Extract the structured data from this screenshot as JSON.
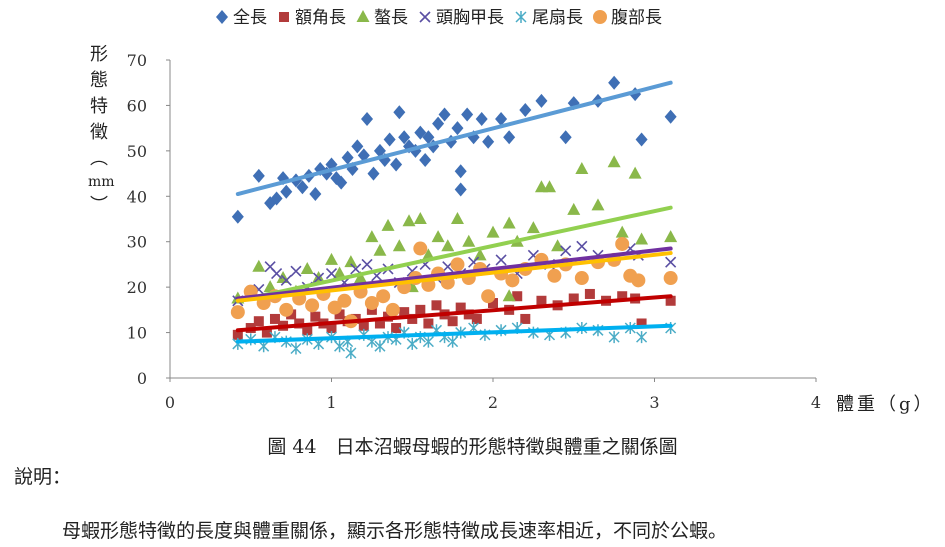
{
  "chart_data": {
    "type": "scatter",
    "ylabel_chars": [
      "形",
      "態",
      "特",
      "徵",
      "︵",
      "mm",
      "︶"
    ],
    "xlabel": "體重（g）",
    "xlim": [
      0,
      4
    ],
    "ylim": [
      0,
      70
    ],
    "x_ticks": [
      "0",
      "1",
      "2",
      "3",
      "4"
    ],
    "y_ticks": [
      "0",
      "10",
      "20",
      "30",
      "40",
      "50",
      "60",
      "70"
    ],
    "grid": false,
    "legend_position": "top",
    "series": [
      {
        "name": "全長",
        "color": "#3f6fb5",
        "marker": "diamond",
        "trend_color": "#5b9bd5",
        "trend": [
          [
            0.42,
            40.5
          ],
          [
            3.1,
            65
          ]
        ],
        "points": [
          [
            0.42,
            35.5
          ],
          [
            0.55,
            44.5
          ],
          [
            0.62,
            38.5
          ],
          [
            0.66,
            39.5
          ],
          [
            0.7,
            44
          ],
          [
            0.72,
            41
          ],
          [
            0.78,
            43.5
          ],
          [
            0.82,
            42
          ],
          [
            0.86,
            44.5
          ],
          [
            0.9,
            40.5
          ],
          [
            0.93,
            46
          ],
          [
            0.97,
            45
          ],
          [
            1.0,
            47
          ],
          [
            1.03,
            44
          ],
          [
            1.06,
            43
          ],
          [
            1.1,
            48.5
          ],
          [
            1.13,
            46
          ],
          [
            1.16,
            51
          ],
          [
            1.2,
            49
          ],
          [
            1.22,
            57
          ],
          [
            1.26,
            45
          ],
          [
            1.3,
            50
          ],
          [
            1.33,
            48
          ],
          [
            1.36,
            52.5
          ],
          [
            1.4,
            47
          ],
          [
            1.42,
            58.5
          ],
          [
            1.45,
            53
          ],
          [
            1.48,
            51
          ],
          [
            1.52,
            50
          ],
          [
            1.55,
            54
          ],
          [
            1.58,
            48
          ],
          [
            1.6,
            53
          ],
          [
            1.63,
            51
          ],
          [
            1.66,
            56
          ],
          [
            1.7,
            58
          ],
          [
            1.74,
            52
          ],
          [
            1.78,
            55
          ],
          [
            1.8,
            45.5
          ],
          [
            1.8,
            41.5
          ],
          [
            1.84,
            58
          ],
          [
            1.88,
            53
          ],
          [
            1.93,
            57
          ],
          [
            1.97,
            52
          ],
          [
            2.05,
            57
          ],
          [
            2.1,
            53
          ],
          [
            2.2,
            59
          ],
          [
            2.3,
            61
          ],
          [
            2.45,
            53
          ],
          [
            2.5,
            60.5
          ],
          [
            2.65,
            61
          ],
          [
            2.75,
            65
          ],
          [
            2.88,
            62.5
          ],
          [
            2.92,
            52.5
          ],
          [
            3.1,
            57.5
          ]
        ]
      },
      {
        "name": "額角長",
        "color": "#b23b3b",
        "marker": "square",
        "trend_color": "#c00000",
        "trend": [
          [
            0.42,
            10.5
          ],
          [
            3.1,
            18
          ]
        ],
        "points": [
          [
            0.42,
            9.5
          ],
          [
            0.5,
            11
          ],
          [
            0.55,
            12.5
          ],
          [
            0.6,
            10
          ],
          [
            0.65,
            13
          ],
          [
            0.7,
            11.5
          ],
          [
            0.75,
            14
          ],
          [
            0.8,
            12
          ],
          [
            0.85,
            10.5
          ],
          [
            0.9,
            13.5
          ],
          [
            0.95,
            12
          ],
          [
            1.0,
            11
          ],
          [
            1.05,
            14
          ],
          [
            1.1,
            12.5
          ],
          [
            1.15,
            13
          ],
          [
            1.2,
            11.5
          ],
          [
            1.25,
            15
          ],
          [
            1.3,
            12
          ],
          [
            1.35,
            13.5
          ],
          [
            1.4,
            11
          ],
          [
            1.45,
            14.5
          ],
          [
            1.5,
            13
          ],
          [
            1.55,
            15
          ],
          [
            1.6,
            12
          ],
          [
            1.65,
            16
          ],
          [
            1.7,
            14
          ],
          [
            1.75,
            12.5
          ],
          [
            1.8,
            15.5
          ],
          [
            1.85,
            14
          ],
          [
            1.9,
            13
          ],
          [
            2.0,
            16.5
          ],
          [
            2.1,
            15
          ],
          [
            2.15,
            18
          ],
          [
            2.2,
            13
          ],
          [
            2.3,
            17
          ],
          [
            2.4,
            16
          ],
          [
            2.5,
            17.5
          ],
          [
            2.6,
            18.5
          ],
          [
            2.7,
            17
          ],
          [
            2.8,
            18
          ],
          [
            2.88,
            17.5
          ],
          [
            2.92,
            12
          ],
          [
            3.1,
            17
          ]
        ]
      },
      {
        "name": "螯長",
        "color": "#8ab84a",
        "marker": "triangle",
        "trend_color": "#92d050",
        "trend": [
          [
            0.42,
            17
          ],
          [
            3.1,
            37.5
          ]
        ],
        "points": [
          [
            0.42,
            17.5
          ],
          [
            0.55,
            24.5
          ],
          [
            0.62,
            20
          ],
          [
            0.7,
            22
          ],
          [
            0.78,
            19
          ],
          [
            0.85,
            24
          ],
          [
            0.92,
            22
          ],
          [
            1.0,
            26
          ],
          [
            1.05,
            23
          ],
          [
            1.12,
            25.5
          ],
          [
            1.18,
            22
          ],
          [
            1.25,
            31
          ],
          [
            1.3,
            28
          ],
          [
            1.35,
            33.5
          ],
          [
            1.42,
            29
          ],
          [
            1.48,
            34.5
          ],
          [
            1.55,
            35
          ],
          [
            1.6,
            27
          ],
          [
            1.66,
            31
          ],
          [
            1.72,
            29
          ],
          [
            1.78,
            35
          ],
          [
            1.85,
            30
          ],
          [
            1.92,
            27
          ],
          [
            2.0,
            32
          ],
          [
            2.1,
            34
          ],
          [
            2.15,
            30
          ],
          [
            2.25,
            33
          ],
          [
            2.3,
            42
          ],
          [
            2.35,
            42
          ],
          [
            2.4,
            29
          ],
          [
            2.5,
            37
          ],
          [
            2.55,
            46
          ],
          [
            2.65,
            38
          ],
          [
            2.75,
            47.5
          ],
          [
            2.8,
            32
          ],
          [
            2.88,
            45
          ],
          [
            2.92,
            30.5
          ],
          [
            3.1,
            31
          ],
          [
            2.1,
            18
          ],
          [
            1.5,
            20
          ]
        ]
      },
      {
        "name": "頭胸甲長",
        "color": "#5a4fa3",
        "marker": "x",
        "trend_color": "#7030a0",
        "trend": [
          [
            0.42,
            17.5
          ],
          [
            3.1,
            28.5
          ]
        ],
        "points": [
          [
            0.42,
            17
          ],
          [
            0.55,
            19.5
          ],
          [
            0.62,
            24.5
          ],
          [
            0.66,
            23
          ],
          [
            0.72,
            21.5
          ],
          [
            0.78,
            23.5
          ],
          [
            0.85,
            20
          ],
          [
            0.92,
            22
          ],
          [
            1.0,
            23
          ],
          [
            1.08,
            21
          ],
          [
            1.15,
            24
          ],
          [
            1.22,
            25
          ],
          [
            1.28,
            22.5
          ],
          [
            1.35,
            24
          ],
          [
            1.42,
            21
          ],
          [
            1.5,
            23.5
          ],
          [
            1.58,
            25
          ],
          [
            1.65,
            22
          ],
          [
            1.72,
            24.5
          ],
          [
            1.8,
            23
          ],
          [
            1.88,
            25.5
          ],
          [
            1.95,
            24
          ],
          [
            2.05,
            26
          ],
          [
            2.15,
            23
          ],
          [
            2.25,
            27
          ],
          [
            2.35,
            25
          ],
          [
            2.45,
            28
          ],
          [
            2.55,
            29
          ],
          [
            2.65,
            27
          ],
          [
            2.75,
            26
          ],
          [
            2.85,
            28.5
          ],
          [
            2.9,
            27
          ],
          [
            3.1,
            25.5
          ]
        ]
      },
      {
        "name": "尾扇長",
        "color": "#4bacc6",
        "marker": "star",
        "trend_color": "#00b0f0",
        "trend": [
          [
            0.42,
            8
          ],
          [
            3.1,
            11.5
          ]
        ],
        "points": [
          [
            0.42,
            7.5
          ],
          [
            0.5,
            8.5
          ],
          [
            0.58,
            7
          ],
          [
            0.65,
            9
          ],
          [
            0.72,
            8
          ],
          [
            0.78,
            6.5
          ],
          [
            0.85,
            8.5
          ],
          [
            0.92,
            7.5
          ],
          [
            1.0,
            9
          ],
          [
            1.05,
            7
          ],
          [
            1.1,
            8
          ],
          [
            1.12,
            5.5
          ],
          [
            1.2,
            9.5
          ],
          [
            1.25,
            8
          ],
          [
            1.3,
            7
          ],
          [
            1.35,
            9
          ],
          [
            1.4,
            8.5
          ],
          [
            1.45,
            10
          ],
          [
            1.5,
            7.5
          ],
          [
            1.55,
            9
          ],
          [
            1.6,
            8
          ],
          [
            1.65,
            10.5
          ],
          [
            1.7,
            9
          ],
          [
            1.75,
            8
          ],
          [
            1.8,
            10
          ],
          [
            1.88,
            11
          ],
          [
            1.95,
            9.5
          ],
          [
            2.05,
            10.5
          ],
          [
            2.15,
            11
          ],
          [
            2.25,
            10
          ],
          [
            2.35,
            9.5
          ],
          [
            2.45,
            10
          ],
          [
            2.55,
            11
          ],
          [
            2.65,
            10.5
          ],
          [
            2.75,
            9
          ],
          [
            2.85,
            11
          ],
          [
            2.92,
            9
          ],
          [
            3.1,
            11
          ]
        ]
      },
      {
        "name": "腹部長",
        "color": "#f0a050",
        "marker": "circle",
        "trend_color": "#ffc000",
        "trend": [
          [
            0.42,
            17
          ],
          [
            3.1,
            27.5
          ]
        ],
        "points": [
          [
            0.42,
            14.5
          ],
          [
            0.5,
            19
          ],
          [
            0.58,
            16.5
          ],
          [
            0.65,
            18
          ],
          [
            0.72,
            15
          ],
          [
            0.8,
            17.5
          ],
          [
            0.88,
            16
          ],
          [
            0.95,
            18.5
          ],
          [
            1.02,
            15.5
          ],
          [
            1.08,
            17
          ],
          [
            1.12,
            12.5
          ],
          [
            1.18,
            19
          ],
          [
            1.25,
            16.5
          ],
          [
            1.32,
            18
          ],
          [
            1.38,
            15
          ],
          [
            1.45,
            20
          ],
          [
            1.52,
            22
          ],
          [
            1.55,
            28.5
          ],
          [
            1.6,
            20.5
          ],
          [
            1.66,
            23
          ],
          [
            1.72,
            21
          ],
          [
            1.78,
            25
          ],
          [
            1.85,
            22
          ],
          [
            1.92,
            24
          ],
          [
            1.97,
            18
          ],
          [
            2.05,
            23
          ],
          [
            2.12,
            21.5
          ],
          [
            2.2,
            24
          ],
          [
            2.3,
            26
          ],
          [
            2.38,
            22.5
          ],
          [
            2.45,
            25
          ],
          [
            2.55,
            22
          ],
          [
            2.65,
            25.5
          ],
          [
            2.75,
            26
          ],
          [
            2.8,
            29.5
          ],
          [
            2.85,
            22.5
          ],
          [
            2.9,
            21.5
          ],
          [
            3.1,
            22
          ]
        ]
      }
    ]
  },
  "caption": "圖 44　日本沼蝦母蝦的形態特徵與體重之關係圖",
  "note_title": "說明：",
  "note_body": "母蝦形態特徵的長度與體重關係，顯示各形態特徵成長速率相近，不同於公蝦。"
}
